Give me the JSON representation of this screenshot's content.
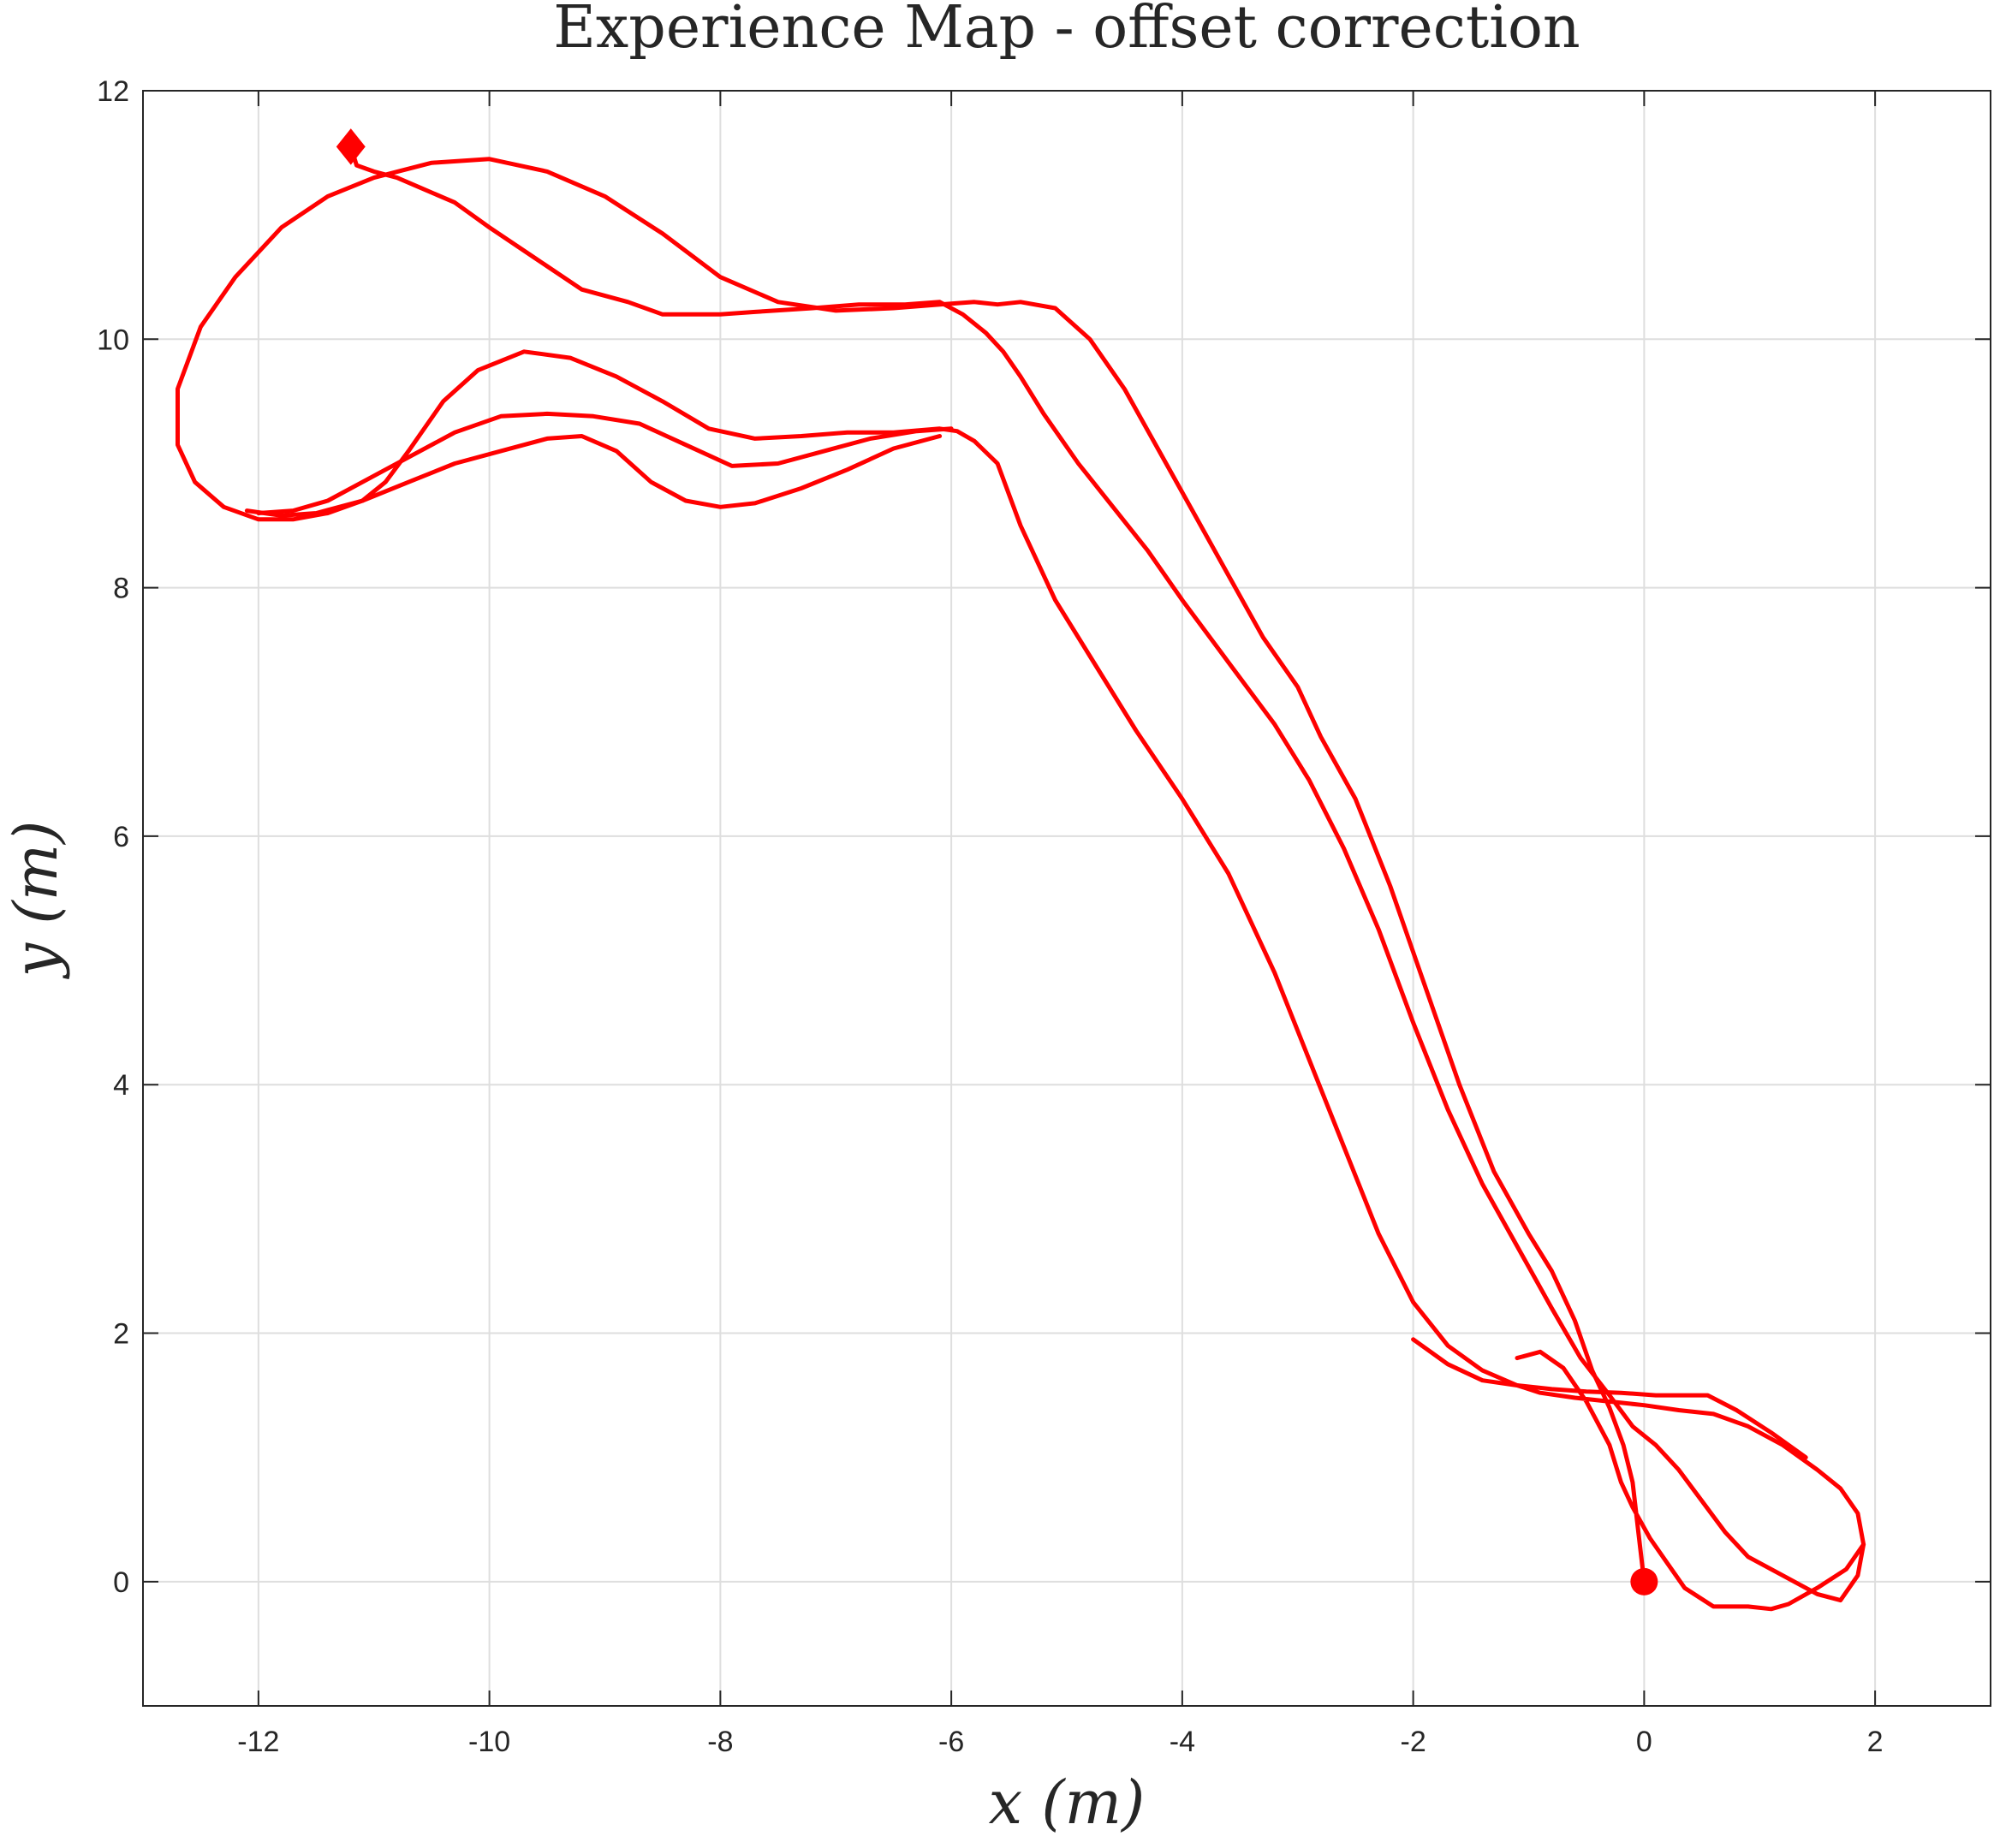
{
  "chart_data": {
    "type": "line",
    "title": "Experience Map - offset correction",
    "xlabel": "x (m)",
    "ylabel": "y (m)",
    "xlim": [
      -13,
      3
    ],
    "ylim": [
      -1,
      12
    ],
    "grid": true,
    "xticks": [
      -12,
      -10,
      -8,
      -6,
      -4,
      -2,
      0,
      2
    ],
    "yticks": [
      0,
      2,
      4,
      6,
      8,
      10,
      12
    ],
    "series_color": "#ff0000",
    "series": [
      {
        "x": [
          0,
          -0.05,
          -0.1,
          -0.18,
          -0.3,
          -0.45,
          -0.6,
          -0.8,
          -1.0,
          -1.3,
          -1.6,
          -1.9,
          -2.2,
          -2.5,
          -2.8,
          -3.0,
          -3.3,
          -3.6,
          -3.9,
          -4.2,
          -4.5,
          -4.8,
          -5.1,
          -5.4,
          -5.6,
          -5.8,
          -6.1,
          -6.5,
          -7.0,
          -7.5,
          -8.0,
          -8.5,
          -9.0,
          -9.5,
          -10.0,
          -10.5,
          -11.0,
          -11.4,
          -11.8,
          -12.2,
          -12.5,
          -12.7,
          -12.7,
          -12.55,
          -12.3,
          -12.0,
          -11.7,
          -11.4,
          -11.1,
          -10.9,
          -10.7,
          -10.4,
          -10.1,
          -9.7,
          -9.3,
          -8.9,
          -8.5,
          -8.1,
          -7.7,
          -7.3,
          -6.9,
          -6.5,
          -6.1,
          -5.95,
          -5.8,
          -5.6,
          -5.4,
          -5.1,
          -4.8,
          -4.4,
          -4.0,
          -3.6,
          -3.2,
          -2.9,
          -2.6,
          -2.3,
          -2.0,
          -1.7,
          -1.4,
          -1.1,
          -0.9,
          -0.6,
          -0.3,
          0.0,
          0.3,
          0.6,
          0.9,
          1.2,
          1.5,
          1.7,
          1.85,
          1.9,
          1.75,
          1.5,
          1.25,
          1.1,
          0.9,
          0.6,
          0.35,
          0.2,
          0.05,
          -0.1,
          -0.2,
          -0.3,
          -0.5,
          -0.7,
          -0.9,
          -1.1
        ],
        "y": [
          0,
          0.4,
          0.8,
          1.1,
          1.4,
          1.7,
          2.1,
          2.5,
          2.8,
          3.3,
          4.0,
          4.8,
          5.6,
          6.3,
          6.8,
          7.2,
          7.6,
          8.1,
          8.6,
          9.1,
          9.6,
          10.0,
          10.25,
          10.3,
          10.28,
          10.3,
          10.28,
          10.25,
          10.23,
          10.3,
          10.5,
          10.85,
          11.15,
          11.35,
          11.45,
          11.42,
          11.3,
          11.15,
          10.9,
          10.5,
          10.1,
          9.6,
          9.15,
          8.85,
          8.65,
          8.55,
          8.55,
          8.6,
          8.7,
          8.85,
          9.1,
          9.5,
          9.75,
          9.9,
          9.85,
          9.7,
          9.5,
          9.28,
          9.2,
          9.22,
          9.25,
          9.25,
          9.28,
          9.26,
          9.18,
          9.0,
          8.5,
          7.9,
          7.45,
          6.85,
          6.3,
          5.7,
          4.9,
          4.2,
          3.5,
          2.8,
          2.25,
          1.9,
          1.7,
          1.58,
          1.52,
          1.48,
          1.45,
          1.42,
          1.38,
          1.35,
          1.25,
          1.1,
          0.9,
          0.75,
          0.55,
          0.3,
          0.1,
          -0.05,
          -0.18,
          -0.22,
          -0.2,
          -0.2,
          -0.05,
          0.15,
          0.35,
          0.6,
          0.8,
          1.1,
          1.45,
          1.72,
          1.85,
          1.8
        ]
      },
      {
        "x": [
          -11.2,
          -11.15,
          -11.0,
          -10.8,
          -10.6,
          -10.3,
          -10.0,
          -9.6,
          -9.2,
          -8.8,
          -8.5,
          -8.2,
          -8.0,
          -7.7,
          -7.2,
          -6.8,
          -6.4,
          -6.1,
          -5.9,
          -5.7,
          -5.55,
          -5.4,
          -5.2,
          -4.9,
          -4.6,
          -4.3,
          -4.0,
          -3.6,
          -3.2,
          -2.9,
          -2.6,
          -2.3,
          -2.0,
          -1.7,
          -1.4,
          -1.1,
          -0.8,
          -0.55,
          -0.3,
          -0.1,
          0.1,
          0.3,
          0.5,
          0.7,
          0.9,
          1.2,
          1.5,
          1.7,
          1.85,
          1.9
        ],
        "y": [
          11.55,
          11.4,
          11.35,
          11.3,
          11.22,
          11.1,
          10.9,
          10.65,
          10.4,
          10.3,
          10.2,
          10.2,
          10.2,
          10.22,
          10.25,
          10.28,
          10.28,
          10.3,
          10.2,
          10.05,
          9.9,
          9.7,
          9.4,
          9.0,
          8.65,
          8.3,
          7.9,
          7.4,
          6.9,
          6.45,
          5.9,
          5.25,
          4.5,
          3.8,
          3.2,
          2.7,
          2.2,
          1.8,
          1.5,
          1.25,
          1.1,
          0.9,
          0.65,
          0.4,
          0.2,
          0.05,
          -0.1,
          -0.15,
          0.05,
          0.3
        ]
      },
      {
        "x": [
          -12.0,
          -11.7,
          -11.4,
          -11.1,
          -10.7,
          -10.3,
          -9.9,
          -9.5,
          -9.1,
          -8.7,
          -8.3,
          -7.9,
          -7.5,
          -7.1,
          -6.7,
          -6.3,
          -6.0
        ],
        "y": [
          8.6,
          8.62,
          8.7,
          8.85,
          9.05,
          9.25,
          9.38,
          9.4,
          9.38,
          9.32,
          9.15,
          8.98,
          9.0,
          9.1,
          9.2,
          9.26,
          9.28
        ]
      },
      {
        "x": [
          -12.1,
          -11.8,
          -11.5,
          -11.1,
          -10.7,
          -10.3,
          -9.9,
          -9.5,
          -9.2,
          -8.9,
          -8.6,
          -8.3,
          -8.0,
          -7.7,
          -7.3,
          -6.9,
          -6.5,
          -6.1
        ],
        "y": [
          8.62,
          8.58,
          8.6,
          8.7,
          8.85,
          9.0,
          9.1,
          9.2,
          9.22,
          9.1,
          8.85,
          8.7,
          8.65,
          8.68,
          8.8,
          8.95,
          9.12,
          9.22
        ]
      },
      {
        "x": [
          -2.0,
          -1.7,
          -1.4,
          -1.1,
          -0.8,
          -0.5,
          -0.2,
          0.1,
          0.4,
          0.55,
          0.8,
          1.1,
          1.4
        ],
        "y": [
          1.95,
          1.75,
          1.62,
          1.58,
          1.55,
          1.53,
          1.52,
          1.5,
          1.5,
          1.5,
          1.38,
          1.2,
          1.0
        ]
      }
    ],
    "markers": [
      {
        "shape": "circle",
        "x": 0,
        "y": 0
      },
      {
        "shape": "diamond",
        "x": -11.2,
        "y": 11.55
      }
    ]
  }
}
